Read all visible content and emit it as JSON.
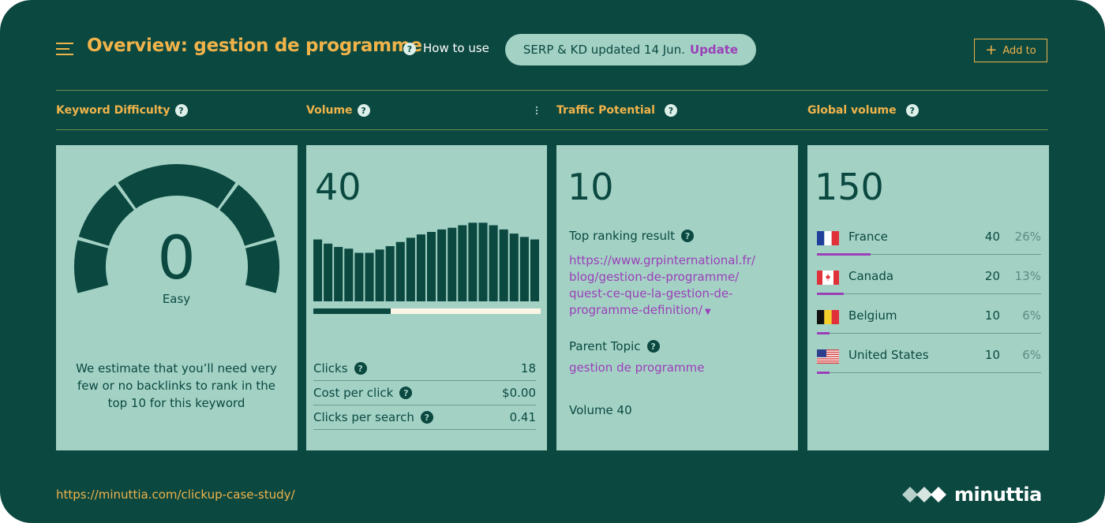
{
  "header": {
    "title": "Overview: gestion de programme",
    "how_to_use": "How to use",
    "serp_status": "SERP & KD updated 14 Jun.",
    "update_label": "Update",
    "add_to_label": "Add to"
  },
  "columns": {
    "kd": "Keyword Difficulty",
    "volume": "Volume",
    "traffic": "Traffic Potential",
    "global": "Global volume"
  },
  "kd": {
    "value": "0",
    "label": "Easy",
    "description": "We estimate that you’ll need very few or no backlinks to rank in the top 10 for this keyword"
  },
  "volume": {
    "value": "40",
    "trend": [
      0.74,
      0.69,
      0.65,
      0.63,
      0.58,
      0.58,
      0.62,
      0.66,
      0.71,
      0.76,
      0.8,
      0.83,
      0.86,
      0.88,
      0.91,
      0.94,
      0.94,
      0.91,
      0.86,
      0.81,
      0.77,
      0.74
    ],
    "clicks_share": 0.34,
    "rows": [
      {
        "label": "Clicks",
        "value": "18"
      },
      {
        "label": "Cost per click",
        "value": "$0.00"
      },
      {
        "label": "Clicks per search",
        "value": "0.41"
      }
    ]
  },
  "traffic": {
    "value": "10",
    "top_result_label": "Top ranking result",
    "top_result_url_lines": [
      "https://www.grpinternational.fr/",
      "blog/gestion-de-programme/",
      "quest-ce-que-la-gestion-de-",
      "programme-definition/"
    ],
    "parent_topic_label": "Parent Topic",
    "parent_topic": "gestion de programme",
    "volume_text": "Volume 40"
  },
  "global": {
    "value": "150",
    "countries": [
      {
        "name": "France",
        "value": "40",
        "pct": "26%",
        "share": 0.26,
        "flag": "france-flag"
      },
      {
        "name": "Canada",
        "value": "20",
        "pct": "13%",
        "share": 0.13,
        "flag": "canada-flag"
      },
      {
        "name": "Belgium",
        "value": "10",
        "pct": "6%",
        "share": 0.06,
        "flag": "belgium-flag"
      },
      {
        "name": "United States",
        "value": "10",
        "pct": "6%",
        "share": 0.06,
        "flag": "usa-flag"
      }
    ]
  },
  "footer": {
    "url": "https://minuttia.com/clickup-case-study/",
    "logo": "minuttia"
  },
  "colors": {
    "background": "#0b4840",
    "card": "#a3d2c5",
    "accent": "#f0b34a",
    "link": "#9b3fb8"
  }
}
